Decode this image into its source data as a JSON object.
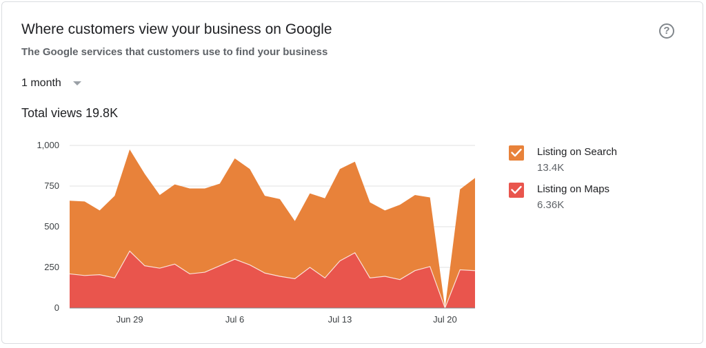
{
  "card": {
    "title": "Where customers view your business on Google",
    "subtitle": "The Google services that customers use to find your business",
    "help_icon": "help-circle-icon",
    "help_glyph": "?",
    "period": {
      "selected": "1 month",
      "caret_icon": "caret-down-icon"
    },
    "total": {
      "label": "Total views",
      "value": "19.8K"
    }
  },
  "legend": [
    {
      "name": "Listing on Search",
      "value": "13.4K",
      "color": "#e8823a",
      "checked": true,
      "check_icon": "check-icon"
    },
    {
      "name": "Listing on Maps",
      "value": "6.36K",
      "color": "#e9554d",
      "checked": true,
      "check_icon": "check-icon"
    }
  ],
  "chart_data": {
    "type": "area",
    "stacked": true,
    "y_ticks": [
      0,
      250,
      500,
      750,
      1000
    ],
    "y_tick_labels": [
      "0",
      "250",
      "500",
      "750",
      "1,000"
    ],
    "ylim": [
      0,
      1000
    ],
    "x_tick_labels": [
      "Jun 29",
      "Jul 6",
      "Jul 13",
      "Jul 20"
    ],
    "x_tick_index": [
      4,
      11,
      18,
      25
    ],
    "grid": true,
    "legend_position": "right",
    "series": [
      {
        "name": "Listing on Maps",
        "color": "#e9554d",
        "values": [
          210,
          200,
          205,
          185,
          350,
          260,
          245,
          270,
          210,
          220,
          260,
          300,
          265,
          215,
          195,
          180,
          250,
          185,
          290,
          340,
          185,
          195,
          175,
          230,
          255,
          0,
          235,
          230
        ]
      },
      {
        "name": "Listing on Search",
        "color": "#e8823a",
        "values": [
          450,
          455,
          395,
          505,
          625,
          565,
          450,
          490,
          525,
          515,
          505,
          620,
          590,
          475,
          475,
          355,
          455,
          490,
          565,
          560,
          465,
          405,
          460,
          465,
          425,
          0,
          495,
          570
        ]
      }
    ]
  }
}
